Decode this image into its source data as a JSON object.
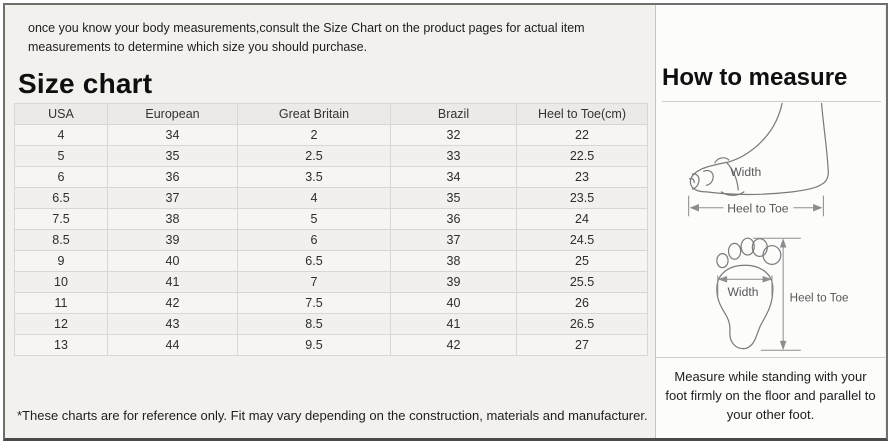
{
  "header": {
    "intro": "once you know your body measurements,consult the Size Chart on the product pages for actual item measurements to determine which size you should purchase."
  },
  "size_chart": {
    "title": "Size chart",
    "footnote": "*These charts are for reference only. Fit may vary depending on the construction, materials and manufacturer.",
    "table": {
      "columns": [
        "USA",
        "European",
        "Great Britain",
        "Brazil",
        "Heel to Toe(cm)"
      ],
      "rows": [
        [
          "4",
          "34",
          "2",
          "32",
          "22"
        ],
        [
          "5",
          "35",
          "2.5",
          "33",
          "22.5"
        ],
        [
          "6",
          "36",
          "3.5",
          "34",
          "23"
        ],
        [
          "6.5",
          "37",
          "4",
          "35",
          "23.5"
        ],
        [
          "7.5",
          "38",
          "5",
          "36",
          "24"
        ],
        [
          "8.5",
          "39",
          "6",
          "37",
          "24.5"
        ],
        [
          "9",
          "40",
          "6.5",
          "38",
          "25"
        ],
        [
          "10",
          "41",
          "7",
          "39",
          "25.5"
        ],
        [
          "11",
          "42",
          "7.5",
          "40",
          "26"
        ],
        [
          "12",
          "43",
          "8.5",
          "41",
          "26.5"
        ],
        [
          "13",
          "44",
          "9.5",
          "42",
          "27"
        ]
      ]
    }
  },
  "how_to_measure": {
    "title": "How to measure",
    "side_view": {
      "width_label": "Width",
      "length_label": "Heel to Toe"
    },
    "sole_view": {
      "width_label": "Width",
      "length_label": "Heel to Toe"
    },
    "note": "Measure while standing with your foot firmly on the floor and parallel to your other foot."
  },
  "colors": {
    "frame_border": "#6f6f6f",
    "frame_border_dark": "#4a4a4a",
    "page_bg": "#f2f1ee",
    "panel_bg": "#fcfcfb",
    "divider": "#c6c5c2",
    "header_bg": "#eceae6",
    "row_bg": "#f6f5f1",
    "row_alt_bg": "#f1f0ec",
    "cell_border": "#d9d7d3",
    "text": "#262626",
    "diagram_line": "#7a7a7a",
    "diagram_text": "#585858"
  }
}
